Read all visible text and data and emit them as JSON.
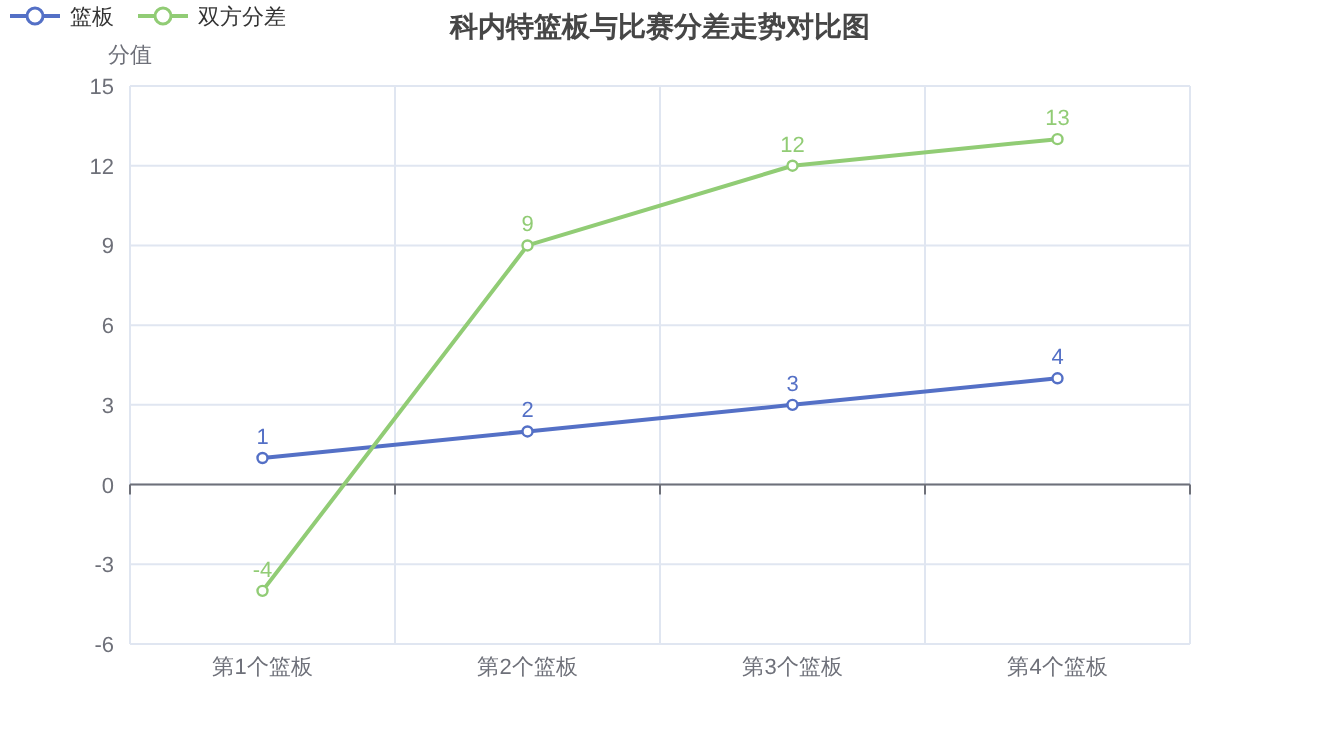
{
  "chart_data": {
    "type": "line",
    "title": "科内特篮板与比赛分差走势对比图",
    "ylabel": "分值",
    "categories": [
      "第1个篮板",
      "第2个篮板",
      "第3个篮板",
      "第4个篮板"
    ],
    "series": [
      {
        "name": "篮板",
        "color": "#5470c6",
        "values": [
          1,
          2,
          3,
          4
        ]
      },
      {
        "name": "双方分差",
        "color": "#91cc75",
        "values": [
          -4,
          9,
          12,
          13
        ]
      }
    ],
    "ylim": [
      -6,
      15
    ],
    "yticks": [
      -6,
      -3,
      0,
      3,
      6,
      9,
      12,
      15
    ],
    "grid": true,
    "legend": "top left",
    "marker": "circle",
    "line_style": "solid",
    "data_labels": true
  }
}
